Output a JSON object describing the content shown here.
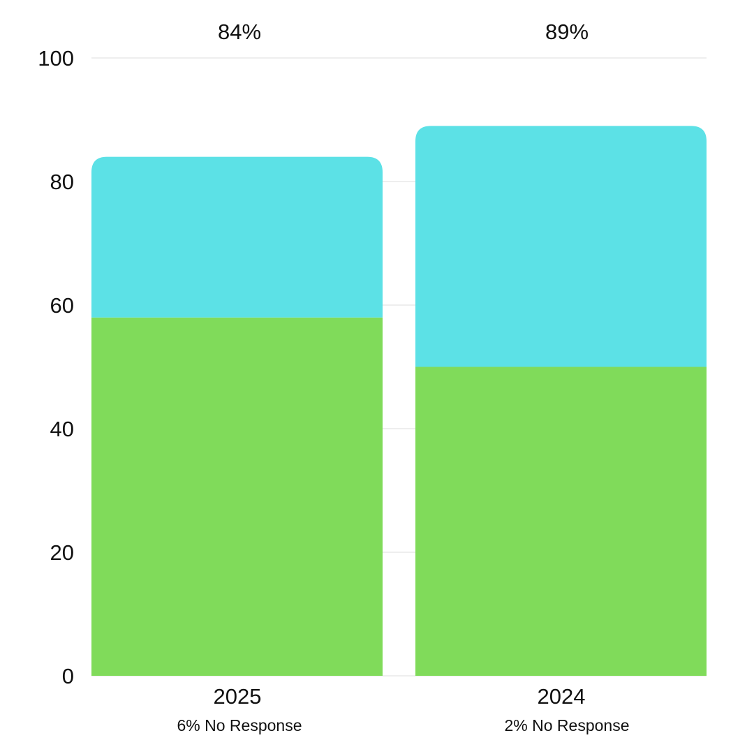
{
  "chart_data": {
    "type": "bar",
    "stacked": true,
    "categories": [
      "2025",
      "2024"
    ],
    "series": [
      {
        "values": [
          58,
          50
        ],
        "color": "#80DB5A"
      },
      {
        "values": [
          26,
          39
        ],
        "color": "#5CE1E6"
      }
    ],
    "totals": [
      "84%",
      "89%"
    ],
    "notes": [
      "6% No Response",
      "2% No Response"
    ],
    "ylim": [
      0,
      100
    ],
    "yticks": [
      "0",
      "20",
      "40",
      "60",
      "80",
      "100"
    ],
    "grid": true,
    "xlabel": "",
    "ylabel": "",
    "title": ""
  }
}
